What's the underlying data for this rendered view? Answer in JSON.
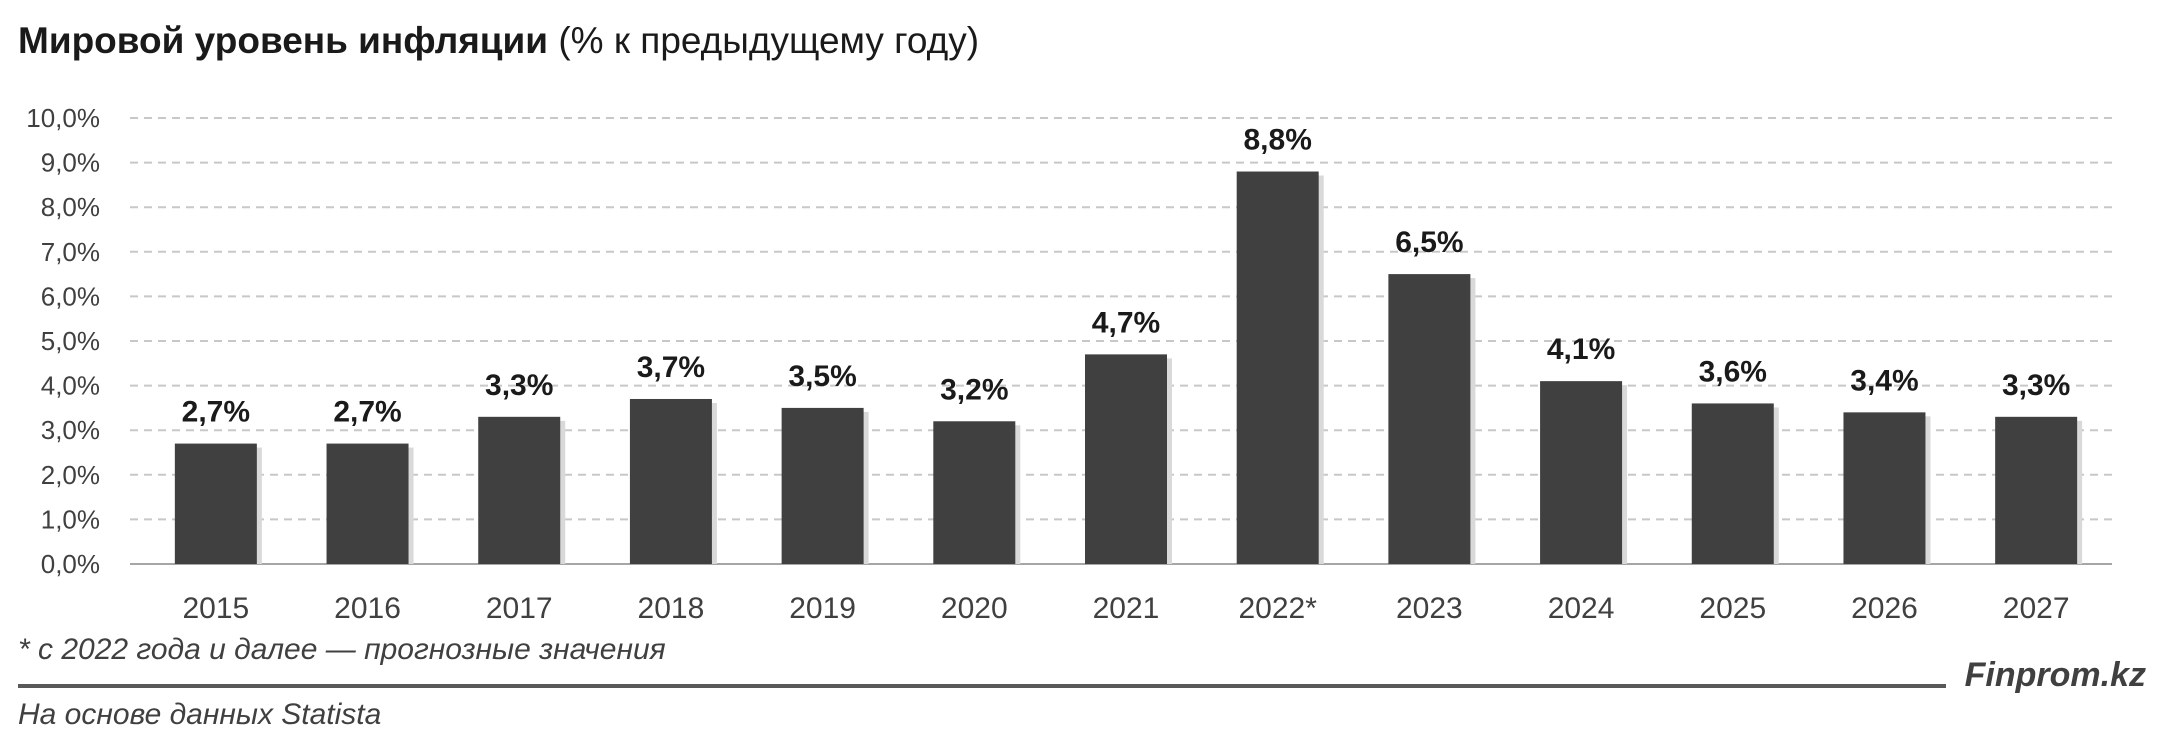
{
  "title": {
    "bold": "Мировой уровень инфляции",
    "normal": " (% к предыдущему году)"
  },
  "footnote": "* с 2022 года и далее — прогнозные значения",
  "source": "На основе данных Statista",
  "brand": "Finprom.kz",
  "colors": {
    "bar": "#404040",
    "grid": "#c8c8c8",
    "text": "#1a1a1a",
    "tick_text": "#404040"
  },
  "chart_data": {
    "type": "bar",
    "categories": [
      "2015",
      "2016",
      "2017",
      "2018",
      "2019",
      "2020",
      "2021",
      "2022*",
      "2023",
      "2024",
      "2025",
      "2026",
      "2027"
    ],
    "values": [
      2.7,
      2.7,
      3.3,
      3.7,
      3.5,
      3.2,
      4.7,
      8.8,
      6.5,
      4.1,
      3.6,
      3.4,
      3.3
    ],
    "value_labels": [
      "2,7%",
      "2,7%",
      "3,3%",
      "3,7%",
      "3,5%",
      "3,2%",
      "4,7%",
      "8,8%",
      "6,5%",
      "4,1%",
      "3,6%",
      "3,4%",
      "3,3%"
    ],
    "ylim": [
      0,
      10
    ],
    "yticks": [
      0,
      1,
      2,
      3,
      4,
      5,
      6,
      7,
      8,
      9,
      10
    ],
    "ytick_labels": [
      "0,0%",
      "1,0%",
      "2,0%",
      "3,0%",
      "4,0%",
      "5,0%",
      "6,0%",
      "7,0%",
      "8,0%",
      "9,0%",
      "10,0%"
    ],
    "grid": true,
    "legend": "none",
    "xlabel": "",
    "ylabel": ""
  }
}
